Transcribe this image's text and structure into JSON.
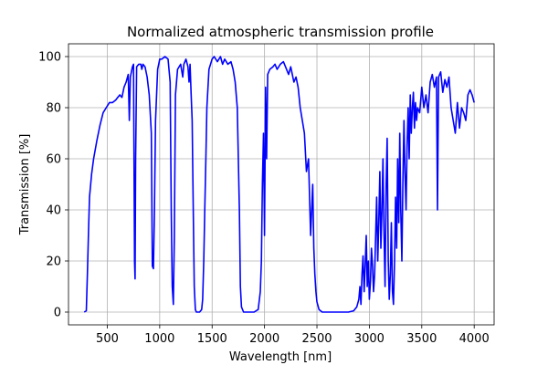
{
  "chart_data": {
    "type": "line",
    "title": "Normalized atmospheric transmission profile",
    "xlabel": "Wavelength [nm]",
    "ylabel": "Transmission [%]",
    "xlim": [
      130,
      4190
    ],
    "ylim": [
      -5,
      105
    ],
    "xticks": [
      500,
      1000,
      1500,
      2000,
      2500,
      3000,
      3500,
      4000
    ],
    "yticks": [
      0,
      20,
      40,
      60,
      80,
      100
    ],
    "grid": true,
    "legend": "none",
    "series": [
      {
        "color": "#0000ff",
        "points": [
          [
            280,
            0
          ],
          [
            300,
            0.5
          ],
          [
            310,
            15
          ],
          [
            320,
            30
          ],
          [
            330,
            45
          ],
          [
            350,
            54
          ],
          [
            370,
            60
          ],
          [
            400,
            67
          ],
          [
            430,
            73
          ],
          [
            460,
            78
          ],
          [
            490,
            80
          ],
          [
            520,
            82
          ],
          [
            550,
            82
          ],
          [
            580,
            83
          ],
          [
            600,
            84
          ],
          [
            620,
            85
          ],
          [
            640,
            84
          ],
          [
            660,
            88
          ],
          [
            680,
            90
          ],
          [
            700,
            93
          ],
          [
            710,
            75
          ],
          [
            720,
            92
          ],
          [
            730,
            94
          ],
          [
            740,
            96
          ],
          [
            750,
            97
          ],
          [
            760,
            20
          ],
          [
            765,
            13
          ],
          [
            770,
            60
          ],
          [
            780,
            96
          ],
          [
            800,
            97
          ],
          [
            820,
            97
          ],
          [
            830,
            95
          ],
          [
            840,
            97
          ],
          [
            860,
            96
          ],
          [
            880,
            92
          ],
          [
            900,
            85
          ],
          [
            920,
            70
          ],
          [
            930,
            18
          ],
          [
            940,
            17
          ],
          [
            950,
            40
          ],
          [
            960,
            75
          ],
          [
            980,
            95
          ],
          [
            1000,
            99
          ],
          [
            1020,
            99
          ],
          [
            1050,
            100
          ],
          [
            1080,
            99
          ],
          [
            1100,
            90
          ],
          [
            1110,
            40
          ],
          [
            1120,
            10
          ],
          [
            1130,
            3
          ],
          [
            1140,
            30
          ],
          [
            1150,
            85
          ],
          [
            1170,
            95
          ],
          [
            1200,
            97
          ],
          [
            1220,
            92
          ],
          [
            1230,
            97
          ],
          [
            1250,
            99
          ],
          [
            1270,
            96
          ],
          [
            1280,
            90
          ],
          [
            1290,
            97
          ],
          [
            1300,
            85
          ],
          [
            1310,
            75
          ],
          [
            1320,
            40
          ],
          [
            1330,
            10
          ],
          [
            1340,
            1
          ],
          [
            1350,
            0
          ],
          [
            1380,
            0
          ],
          [
            1400,
            1
          ],
          [
            1410,
            5
          ],
          [
            1420,
            20
          ],
          [
            1430,
            40
          ],
          [
            1440,
            60
          ],
          [
            1450,
            80
          ],
          [
            1470,
            95
          ],
          [
            1500,
            99
          ],
          [
            1520,
            100
          ],
          [
            1550,
            98
          ],
          [
            1580,
            100
          ],
          [
            1600,
            97
          ],
          [
            1620,
            99
          ],
          [
            1650,
            97
          ],
          [
            1680,
            98
          ],
          [
            1700,
            95
          ],
          [
            1720,
            90
          ],
          [
            1740,
            80
          ],
          [
            1760,
            40
          ],
          [
            1770,
            10
          ],
          [
            1780,
            2
          ],
          [
            1800,
            0
          ],
          [
            1850,
            0
          ],
          [
            1900,
            0
          ],
          [
            1940,
            1
          ],
          [
            1960,
            8
          ],
          [
            1970,
            20
          ],
          [
            1980,
            50
          ],
          [
            1990,
            70
          ],
          [
            2000,
            30
          ],
          [
            2010,
            88
          ],
          [
            2020,
            60
          ],
          [
            2030,
            93
          ],
          [
            2050,
            95
          ],
          [
            2080,
            96
          ],
          [
            2100,
            97
          ],
          [
            2120,
            95
          ],
          [
            2150,
            97
          ],
          [
            2180,
            98
          ],
          [
            2200,
            96
          ],
          [
            2230,
            93
          ],
          [
            2250,
            96
          ],
          [
            2280,
            90
          ],
          [
            2300,
            92
          ],
          [
            2320,
            88
          ],
          [
            2340,
            80
          ],
          [
            2360,
            75
          ],
          [
            2380,
            70
          ],
          [
            2400,
            55
          ],
          [
            2420,
            60
          ],
          [
            2440,
            30
          ],
          [
            2460,
            50
          ],
          [
            2470,
            25
          ],
          [
            2480,
            15
          ],
          [
            2490,
            8
          ],
          [
            2500,
            4
          ],
          [
            2520,
            1
          ],
          [
            2550,
            0
          ],
          [
            2600,
            0
          ],
          [
            2700,
            0
          ],
          [
            2800,
            0
          ],
          [
            2850,
            0.5
          ],
          [
            2880,
            2
          ],
          [
            2900,
            5
          ],
          [
            2910,
            10
          ],
          [
            2920,
            3
          ],
          [
            2930,
            15
          ],
          [
            2940,
            22
          ],
          [
            2950,
            8
          ],
          [
            2960,
            18
          ],
          [
            2970,
            30
          ],
          [
            2980,
            10
          ],
          [
            2990,
            20
          ],
          [
            3000,
            5
          ],
          [
            3010,
            12
          ],
          [
            3020,
            25
          ],
          [
            3030,
            18
          ],
          [
            3040,
            8
          ],
          [
            3050,
            15
          ],
          [
            3060,
            30
          ],
          [
            3070,
            45
          ],
          [
            3080,
            20
          ],
          [
            3090,
            35
          ],
          [
            3100,
            55
          ],
          [
            3110,
            25
          ],
          [
            3120,
            40
          ],
          [
            3130,
            60
          ],
          [
            3140,
            30
          ],
          [
            3150,
            10
          ],
          [
            3160,
            50
          ],
          [
            3170,
            68
          ],
          [
            3180,
            20
          ],
          [
            3190,
            5
          ],
          [
            3200,
            15
          ],
          [
            3210,
            35
          ],
          [
            3220,
            8
          ],
          [
            3230,
            3
          ],
          [
            3240,
            20
          ],
          [
            3250,
            45
          ],
          [
            3260,
            25
          ],
          [
            3270,
            60
          ],
          [
            3280,
            35
          ],
          [
            3290,
            70
          ],
          [
            3300,
            40
          ],
          [
            3310,
            20
          ],
          [
            3320,
            50
          ],
          [
            3330,
            75
          ],
          [
            3340,
            55
          ],
          [
            3350,
            40
          ],
          [
            3360,
            65
          ],
          [
            3370,
            80
          ],
          [
            3380,
            60
          ],
          [
            3390,
            85
          ],
          [
            3400,
            70
          ],
          [
            3410,
            80
          ],
          [
            3420,
            86
          ],
          [
            3430,
            72
          ],
          [
            3440,
            82
          ],
          [
            3450,
            75
          ],
          [
            3460,
            80
          ],
          [
            3480,
            78
          ],
          [
            3500,
            88
          ],
          [
            3520,
            80
          ],
          [
            3540,
            85
          ],
          [
            3560,
            78
          ],
          [
            3580,
            90
          ],
          [
            3600,
            93
          ],
          [
            3620,
            88
          ],
          [
            3640,
            92
          ],
          [
            3650,
            40
          ],
          [
            3660,
            92
          ],
          [
            3680,
            94
          ],
          [
            3700,
            86
          ],
          [
            3720,
            91
          ],
          [
            3740,
            88
          ],
          [
            3760,
            92
          ],
          [
            3780,
            80
          ],
          [
            3800,
            75
          ],
          [
            3820,
            70
          ],
          [
            3840,
            82
          ],
          [
            3860,
            72
          ],
          [
            3880,
            80
          ],
          [
            3900,
            78
          ],
          [
            3920,
            75
          ],
          [
            3940,
            85
          ],
          [
            3960,
            87
          ],
          [
            3980,
            85
          ],
          [
            4000,
            82
          ]
        ]
      }
    ]
  }
}
